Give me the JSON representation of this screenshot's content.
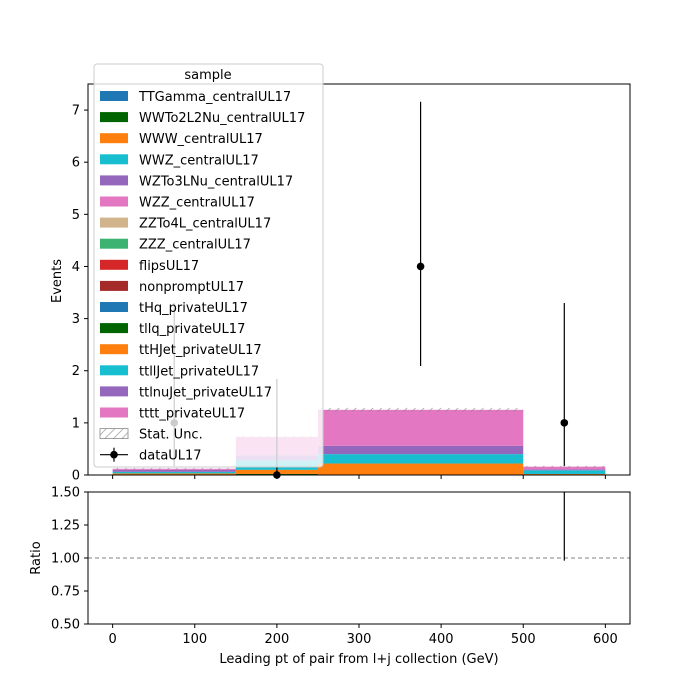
{
  "chart_data": [
    {
      "type": "bar",
      "subtype": "stacked-histogram",
      "ylabel": "Events",
      "xlim": [
        -30,
        630
      ],
      "ylim": [
        0,
        7.5
      ],
      "yticks": [
        0,
        1,
        2,
        3,
        4,
        5,
        6,
        7
      ],
      "bins": [
        [
          0,
          150
        ],
        [
          150,
          250
        ],
        [
          250,
          500
        ],
        [
          500,
          600
        ]
      ],
      "legend": {
        "title": "sample",
        "placement": "top-left",
        "stat_unc_label": "Stat. Unc.",
        "data_label": "dataUL17"
      },
      "series": [
        {
          "name": "TTGamma_centralUL17",
          "color": "#1f77b4",
          "values": [
            0,
            0,
            0,
            0
          ]
        },
        {
          "name": "WWTo2L2Nu_centralUL17",
          "color": "#006400",
          "values": [
            0,
            0.02,
            0,
            0
          ]
        },
        {
          "name": "WWW_centralUL17",
          "color": "#ff7f0e",
          "values": [
            0,
            0,
            0,
            0
          ]
        },
        {
          "name": "WWZ_centralUL17",
          "color": "#17becf",
          "values": [
            0,
            0,
            0,
            0
          ]
        },
        {
          "name": "WZTo3LNu_centralUL17",
          "color": "#9467bd",
          "values": [
            0,
            0,
            0,
            0
          ]
        },
        {
          "name": "WZZ_centralUL17",
          "color": "#e377c2",
          "values": [
            0,
            0,
            0,
            0
          ]
        },
        {
          "name": "ZZTo4L_centralUL17",
          "color": "#d2b48c",
          "values": [
            0,
            0,
            0,
            0
          ]
        },
        {
          "name": "ZZZ_centralUL17",
          "color": "#3cb371",
          "values": [
            0,
            0,
            0,
            0
          ]
        },
        {
          "name": "flipsUL17",
          "color": "#d62728",
          "values": [
            0,
            0,
            0,
            0
          ]
        },
        {
          "name": "nonpromptUL17",
          "color": "#a52a2a",
          "values": [
            0,
            0,
            0,
            0
          ]
        },
        {
          "name": "tHq_privateUL17",
          "color": "#1f77b4",
          "values": [
            0,
            0,
            0,
            0
          ]
        },
        {
          "name": "tllq_privateUL17",
          "color": "#006400",
          "values": [
            0,
            0,
            0,
            0
          ]
        },
        {
          "name": "ttHJet_privateUL17",
          "color": "#ff7f0e",
          "values": [
            0.03,
            0.08,
            0.22,
            0.02
          ]
        },
        {
          "name": "ttllJet_privateUL17",
          "color": "#17becf",
          "values": [
            0.03,
            0.18,
            0.18,
            0.07
          ]
        },
        {
          "name": "ttlnuJet_privateUL17",
          "color": "#9467bd",
          "values": [
            0.04,
            0.1,
            0.16,
            0.02
          ]
        },
        {
          "name": "tttt_privateUL17",
          "color": "#e377c2",
          "values": [
            0.02,
            0.35,
            0.69,
            0.05
          ]
        }
      ],
      "data_points": [
        {
          "x": 75,
          "y": 1,
          "yerr_low": 0.83,
          "yerr_high": 2.3
        },
        {
          "x": 200,
          "y": 0,
          "yerr_low": 0,
          "yerr_high": 1.84
        },
        {
          "x": 375,
          "y": 4,
          "yerr_low": 1.91,
          "yerr_high": 3.16
        },
        {
          "x": 550,
          "y": 1,
          "yerr_low": 0.83,
          "yerr_high": 2.3
        }
      ]
    },
    {
      "type": "scatter",
      "subtype": "ratio",
      "xlabel": "Leading pt of pair from l+j collection (GeV)",
      "ylabel": "Ratio",
      "xlim": [
        -30,
        630
      ],
      "ylim": [
        0.5,
        1.5
      ],
      "xticks": [
        0,
        100,
        200,
        300,
        400,
        500,
        600
      ],
      "yticks": [
        "0.50",
        "0.75",
        "1.00",
        "1.25",
        "1.50"
      ],
      "reference_line": 1.0,
      "data_points": [
        {
          "x": 550,
          "y": 1.0,
          "yerr_low": 0.02,
          "yerr_high": 2.3
        }
      ]
    }
  ]
}
